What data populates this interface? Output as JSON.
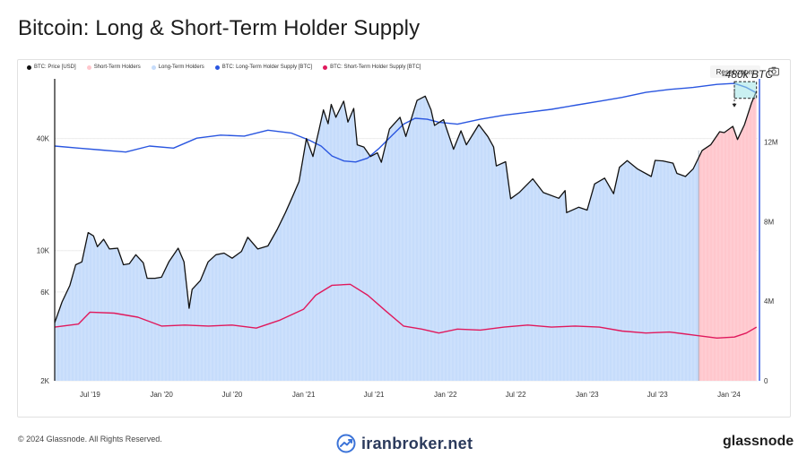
{
  "page": {
    "title": "Bitcoin: Long & Short-Term Holder Supply",
    "copyright": "© 2024 Glassnode. All Rights Reserved.",
    "broker_watermark": "iranbroker.net",
    "brand": "glassnode"
  },
  "toolbar": {
    "reset_zoom_label": "Reset zoom",
    "camera_icon": "camera-icon"
  },
  "colors": {
    "price": "#111111",
    "lth_fill": "#c6dcfb",
    "sth_fill": "#ffc7cd",
    "lth_line": "#2a56e0",
    "sth_line": "#e0195c",
    "grid": "#ececec"
  },
  "chart_data": {
    "type": "line",
    "title": "Bitcoin: Long & Short-Term Holder Supply",
    "legend": {
      "placement": "top-left",
      "entries": [
        {
          "label": "BTC: Price [USD]",
          "color": "#111111"
        },
        {
          "label": "Short-Term Holders",
          "color": "#ffc7cd"
        },
        {
          "label": "Long-Term Holders",
          "color": "#c6dcfb"
        },
        {
          "label": "BTC: Long-Term Holder Supply [BTC]",
          "color": "#2a56e0"
        },
        {
          "label": "BTC: Short-Term Holder Supply [BTC]",
          "color": "#e0195c"
        }
      ]
    },
    "x_range": [
      "2019-04-01",
      "2024-03-15"
    ],
    "x_ticks": [
      {
        "date": "2019-07-01",
        "label": "Jul '19"
      },
      {
        "date": "2020-01-01",
        "label": "Jan '20"
      },
      {
        "date": "2020-07-01",
        "label": "Jul '20"
      },
      {
        "date": "2021-01-01",
        "label": "Jan '21"
      },
      {
        "date": "2021-07-01",
        "label": "Jul '21"
      },
      {
        "date": "2022-01-01",
        "label": "Jan '22"
      },
      {
        "date": "2022-07-01",
        "label": "Jul '22"
      },
      {
        "date": "2023-01-01",
        "label": "Jan '23"
      },
      {
        "date": "2023-07-01",
        "label": "Jul '23"
      },
      {
        "date": "2024-01-01",
        "label": "Jan '24"
      }
    ],
    "y_left": {
      "scale": "log",
      "range": [
        2000,
        80000
      ],
      "ticks": [
        {
          "value": 2000,
          "label": "2K"
        },
        {
          "value": 6000,
          "label": "6K"
        },
        {
          "value": 10000,
          "label": "10K"
        },
        {
          "value": 40000,
          "label": "40K"
        }
      ]
    },
    "y_right": {
      "scale": "linear",
      "range": [
        0,
        15000000
      ],
      "ticks": [
        {
          "value": 0,
          "label": "0"
        },
        {
          "value": 4000000,
          "label": "4M"
        },
        {
          "value": 8000000,
          "label": "8M"
        },
        {
          "value": 12000000,
          "label": "12M"
        }
      ]
    },
    "sth_region_start": "2023-10-15",
    "annotation": {
      "text": "-480k BTC",
      "date_start": "2024-01-15",
      "date_end": "2024-03-12",
      "value_top": 14950000,
      "value_bottom": 14470000
    },
    "series": [
      {
        "name": "BTC: Price [USD]",
        "axis": "left",
        "points": [
          [
            "2019-04-01",
            4100
          ],
          [
            "2019-04-20",
            5300
          ],
          [
            "2019-05-10",
            6500
          ],
          [
            "2019-05-25",
            8400
          ],
          [
            "2019-06-10",
            8700
          ],
          [
            "2019-06-26",
            12500
          ],
          [
            "2019-07-10",
            12000
          ],
          [
            "2019-07-20",
            10500
          ],
          [
            "2019-08-05",
            11500
          ],
          [
            "2019-08-20",
            10200
          ],
          [
            "2019-09-10",
            10300
          ],
          [
            "2019-09-25",
            8400
          ],
          [
            "2019-10-10",
            8500
          ],
          [
            "2019-10-27",
            9500
          ],
          [
            "2019-11-15",
            8600
          ],
          [
            "2019-11-25",
            7100
          ],
          [
            "2019-12-15",
            7100
          ],
          [
            "2020-01-01",
            7200
          ],
          [
            "2020-01-20",
            8700
          ],
          [
            "2020-02-13",
            10300
          ],
          [
            "2020-02-28",
            8700
          ],
          [
            "2020-03-12",
            4900
          ],
          [
            "2020-03-20",
            6200
          ],
          [
            "2020-04-10",
            6900
          ],
          [
            "2020-04-30",
            8700
          ],
          [
            "2020-05-20",
            9500
          ],
          [
            "2020-06-10",
            9700
          ],
          [
            "2020-07-01",
            9100
          ],
          [
            "2020-07-25",
            9900
          ],
          [
            "2020-08-10",
            11800
          ],
          [
            "2020-09-05",
            10200
          ],
          [
            "2020-10-01",
            10600
          ],
          [
            "2020-10-25",
            13000
          ],
          [
            "2020-11-15",
            16000
          ],
          [
            "2020-12-01",
            19000
          ],
          [
            "2020-12-20",
            23500
          ],
          [
            "2021-01-08",
            40000
          ],
          [
            "2021-01-25",
            32000
          ],
          [
            "2021-02-10",
            45000
          ],
          [
            "2021-02-21",
            57000
          ],
          [
            "2021-03-05",
            48000
          ],
          [
            "2021-03-13",
            61000
          ],
          [
            "2021-03-25",
            52000
          ],
          [
            "2021-04-14",
            63500
          ],
          [
            "2021-04-25",
            49000
          ],
          [
            "2021-05-10",
            58000
          ],
          [
            "2021-05-19",
            37000
          ],
          [
            "2021-06-05",
            36000
          ],
          [
            "2021-06-22",
            32000
          ],
          [
            "2021-07-10",
            33500
          ],
          [
            "2021-07-20",
            29800
          ],
          [
            "2021-08-10",
            45000
          ],
          [
            "2021-09-06",
            52000
          ],
          [
            "2021-09-21",
            41000
          ],
          [
            "2021-10-10",
            55000
          ],
          [
            "2021-10-20",
            64000
          ],
          [
            "2021-11-10",
            67500
          ],
          [
            "2021-11-25",
            57000
          ],
          [
            "2021-12-04",
            47000
          ],
          [
            "2021-12-27",
            50500
          ],
          [
            "2022-01-22",
            35000
          ],
          [
            "2022-02-10",
            44000
          ],
          [
            "2022-02-24",
            37000
          ],
          [
            "2022-03-28",
            47500
          ],
          [
            "2022-04-20",
            41000
          ],
          [
            "2022-05-05",
            36000
          ],
          [
            "2022-05-12",
            28500
          ],
          [
            "2022-06-05",
            30000
          ],
          [
            "2022-06-18",
            19000
          ],
          [
            "2022-07-10",
            20500
          ],
          [
            "2022-08-14",
            24300
          ],
          [
            "2022-09-10",
            20500
          ],
          [
            "2022-10-20",
            19100
          ],
          [
            "2022-11-05",
            21000
          ],
          [
            "2022-11-09",
            16000
          ],
          [
            "2022-12-10",
            17100
          ],
          [
            "2023-01-01",
            16500
          ],
          [
            "2023-01-20",
            22800
          ],
          [
            "2023-02-15",
            24500
          ],
          [
            "2023-03-10",
            20200
          ],
          [
            "2023-03-25",
            28000
          ],
          [
            "2023-04-14",
            30400
          ],
          [
            "2023-05-10",
            27500
          ],
          [
            "2023-06-15",
            25000
          ],
          [
            "2023-06-25",
            30500
          ],
          [
            "2023-07-15",
            30300
          ],
          [
            "2023-08-10",
            29500
          ],
          [
            "2023-08-20",
            26000
          ],
          [
            "2023-09-11",
            25000
          ],
          [
            "2023-10-01",
            27500
          ],
          [
            "2023-10-24",
            34500
          ],
          [
            "2023-11-15",
            37000
          ],
          [
            "2023-12-08",
            43500
          ],
          [
            "2023-12-20",
            43000
          ],
          [
            "2024-01-11",
            46500
          ],
          [
            "2024-01-23",
            39500
          ],
          [
            "2024-02-10",
            47500
          ],
          [
            "2024-02-28",
            62000
          ],
          [
            "2024-03-12",
            72000
          ]
        ]
      },
      {
        "name": "BTC: Long-Term Holder Supply [BTC]",
        "axis": "right",
        "points": [
          [
            "2019-04-01",
            11800000
          ],
          [
            "2019-06-01",
            11700000
          ],
          [
            "2019-08-01",
            11600000
          ],
          [
            "2019-10-01",
            11500000
          ],
          [
            "2019-12-01",
            11800000
          ],
          [
            "2020-02-01",
            11700000
          ],
          [
            "2020-04-01",
            12200000
          ],
          [
            "2020-06-01",
            12350000
          ],
          [
            "2020-08-01",
            12300000
          ],
          [
            "2020-10-01",
            12600000
          ],
          [
            "2020-12-01",
            12450000
          ],
          [
            "2021-01-15",
            12100000
          ],
          [
            "2021-02-15",
            11800000
          ],
          [
            "2021-03-15",
            11300000
          ],
          [
            "2021-04-15",
            11050000
          ],
          [
            "2021-05-15",
            11000000
          ],
          [
            "2021-06-15",
            11200000
          ],
          [
            "2021-07-15",
            11700000
          ],
          [
            "2021-08-15",
            12300000
          ],
          [
            "2021-09-15",
            12900000
          ],
          [
            "2021-10-15",
            13200000
          ],
          [
            "2021-11-15",
            13150000
          ],
          [
            "2021-12-15",
            13000000
          ],
          [
            "2022-02-01",
            12900000
          ],
          [
            "2022-04-01",
            13150000
          ],
          [
            "2022-06-01",
            13350000
          ],
          [
            "2022-08-01",
            13500000
          ],
          [
            "2022-10-01",
            13650000
          ],
          [
            "2022-12-01",
            13850000
          ],
          [
            "2023-02-01",
            14050000
          ],
          [
            "2023-04-01",
            14250000
          ],
          [
            "2023-06-01",
            14500000
          ],
          [
            "2023-08-01",
            14650000
          ],
          [
            "2023-10-01",
            14750000
          ],
          [
            "2023-12-01",
            14900000
          ],
          [
            "2024-01-15",
            14950000
          ],
          [
            "2024-02-15",
            14750000
          ],
          [
            "2024-03-12",
            14470000
          ]
        ]
      },
      {
        "name": "BTC: Short-Term Holder Supply [BTC]",
        "axis": "right",
        "points": [
          [
            "2019-04-01",
            2700000
          ],
          [
            "2019-06-01",
            2850000
          ],
          [
            "2019-07-01",
            3450000
          ],
          [
            "2019-09-01",
            3400000
          ],
          [
            "2019-11-01",
            3200000
          ],
          [
            "2020-01-01",
            2750000
          ],
          [
            "2020-03-01",
            2800000
          ],
          [
            "2020-05-01",
            2750000
          ],
          [
            "2020-07-01",
            2800000
          ],
          [
            "2020-09-01",
            2650000
          ],
          [
            "2020-11-01",
            3050000
          ],
          [
            "2021-01-01",
            3600000
          ],
          [
            "2021-02-01",
            4300000
          ],
          [
            "2021-03-15",
            4800000
          ],
          [
            "2021-05-01",
            4850000
          ],
          [
            "2021-06-15",
            4300000
          ],
          [
            "2021-08-01",
            3500000
          ],
          [
            "2021-09-15",
            2750000
          ],
          [
            "2021-11-01",
            2600000
          ],
          [
            "2021-12-15",
            2400000
          ],
          [
            "2022-02-01",
            2600000
          ],
          [
            "2022-04-01",
            2550000
          ],
          [
            "2022-06-01",
            2700000
          ],
          [
            "2022-08-01",
            2800000
          ],
          [
            "2022-10-01",
            2700000
          ],
          [
            "2022-12-01",
            2750000
          ],
          [
            "2023-02-01",
            2700000
          ],
          [
            "2023-04-01",
            2500000
          ],
          [
            "2023-06-01",
            2400000
          ],
          [
            "2023-08-01",
            2450000
          ],
          [
            "2023-10-01",
            2300000
          ],
          [
            "2023-12-01",
            2150000
          ],
          [
            "2024-01-15",
            2200000
          ],
          [
            "2024-02-15",
            2400000
          ],
          [
            "2024-03-12",
            2700000
          ]
        ]
      }
    ]
  }
}
